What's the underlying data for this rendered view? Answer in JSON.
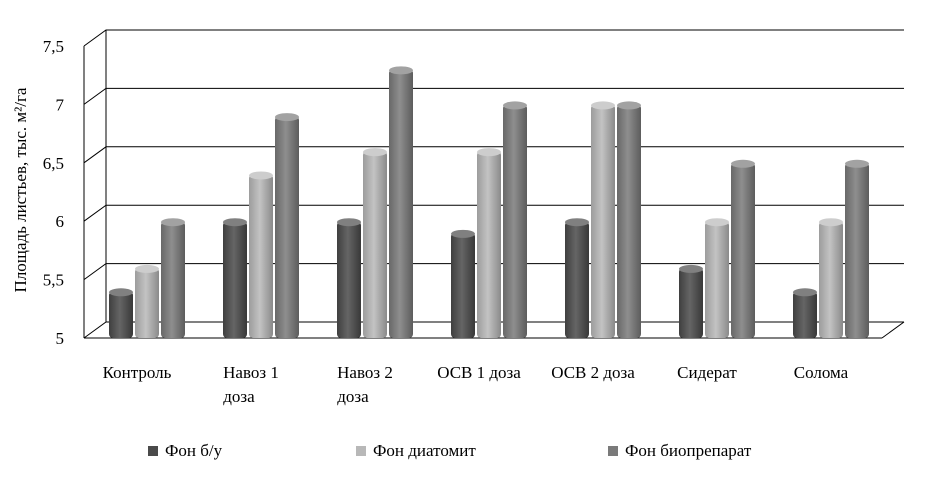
{
  "chart_data": {
    "type": "bar",
    "three_d": true,
    "ylabel": "Площадь листьев, тыс. м²/га",
    "ylim": [
      5,
      7.5
    ],
    "yticks": [
      5,
      5.5,
      6,
      6.5,
      7,
      7.5
    ],
    "ytick_labels": [
      "5",
      "5,5",
      "6",
      "6,5",
      "7",
      "7,5"
    ],
    "grid": true,
    "legend_position": "bottom",
    "categories": [
      [
        "Контроль"
      ],
      [
        "Навоз 1",
        "доза"
      ],
      [
        "Навоз 2",
        "доза"
      ],
      [
        "ОСВ 1 доза"
      ],
      [
        "ОСВ 2 доза"
      ],
      [
        "Сидерат"
      ],
      [
        "Солома"
      ]
    ],
    "series": [
      {
        "name": "Фон б/у",
        "color": "#4a4a4a",
        "values": [
          5.4,
          6.0,
          6.0,
          5.9,
          6.0,
          5.6,
          5.4
        ]
      },
      {
        "name": "Фон диатомит",
        "color": "#b8b8b8",
        "values": [
          5.6,
          6.4,
          6.6,
          6.6,
          7.0,
          6.0,
          6.0
        ]
      },
      {
        "name": "Фон биопрепарат",
        "color": "#7a7a7a",
        "values": [
          6.0,
          6.9,
          7.3,
          7.0,
          7.0,
          6.5,
          6.5
        ]
      }
    ]
  }
}
